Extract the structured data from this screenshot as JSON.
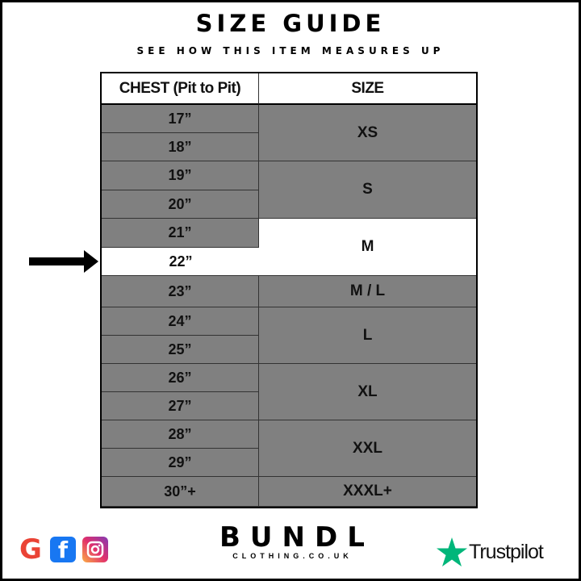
{
  "header": {
    "title": "SIZE GUIDE",
    "subtitle": "SEE HOW THIS ITEM MEASURES UP"
  },
  "table": {
    "headers": [
      "CHEST (Pit to Pit)",
      "SIZE"
    ],
    "chest": [
      "17”",
      "18”",
      "19”",
      "20”",
      "21”",
      "22”",
      "23”",
      "24”",
      "25”",
      "26”",
      "27”",
      "28”",
      "29”",
      "30”+"
    ],
    "sizes": [
      "XS",
      "S",
      "M",
      "M / L",
      "L",
      "XL",
      "XXL",
      "XXXL+"
    ],
    "highlighted_chest": "22”",
    "highlighted_size": "M"
  },
  "colors": {
    "row_fill": "#808080",
    "highlight": "#ffffff",
    "trustpilot": "#00b67a"
  },
  "footer": {
    "social_icons": [
      "google-icon",
      "facebook-icon",
      "instagram-icon"
    ],
    "brand": "BUNDL",
    "brand_sub": "CLOTHING.CO.UK",
    "trustpilot": "Trustpilot"
  }
}
